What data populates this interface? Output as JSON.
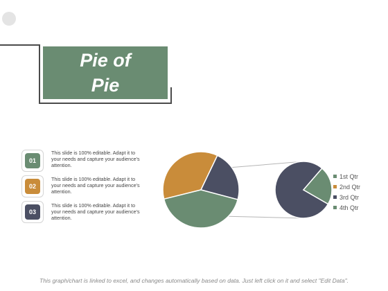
{
  "title": {
    "line1": "Pie of",
    "line2": "Pie"
  },
  "items": [
    {
      "number": "01",
      "color": "#6a8c72",
      "text": "This slide is 100% editable. Adapt it to your needs and capture your audience's attention."
    },
    {
      "number": "02",
      "color": "#c98c3a",
      "text": "This slide is 100% editable. Adapt it to your needs and capture your audience's attention."
    },
    {
      "number": "03",
      "color": "#4b4f63",
      "text": "This slide is 100% editable. Adapt it to your needs and capture your audience's attention."
    }
  ],
  "colors": {
    "green": "#6a8c72",
    "orange": "#c98c3a",
    "navy": "#4b4f63"
  },
  "chart_data": {
    "type": "pie",
    "subtype": "pie-of-pie",
    "main_pie": [
      {
        "label": "2nd Qtr",
        "share": 0.36,
        "color": "#c98c3a"
      },
      {
        "label": "3rd Qtr",
        "share": 0.22,
        "color": "#4b4f63"
      },
      {
        "label": "4th Qtr",
        "share": 0.42,
        "color": "#6a8c72"
      }
    ],
    "secondary_pie": [
      {
        "label": "3rd Qtr",
        "share": 0.78,
        "color": "#4b4f63"
      },
      {
        "label": "4th Qtr",
        "share": 0.22,
        "color": "#6a8c72"
      }
    ],
    "legend": [
      {
        "label": "1st Qtr",
        "color": "#6a8c72"
      },
      {
        "label": "2nd Qtr",
        "color": "#c98c3a"
      },
      {
        "label": "3rd Qtr",
        "color": "#4b4f63"
      },
      {
        "label": "4th Qtr",
        "color": "#6a8c72"
      }
    ],
    "legend_position": "right"
  },
  "footer": "This graph/chart is linked to excel, and changes automatically based on data. Just left click on it and select \"Edit Data\"."
}
